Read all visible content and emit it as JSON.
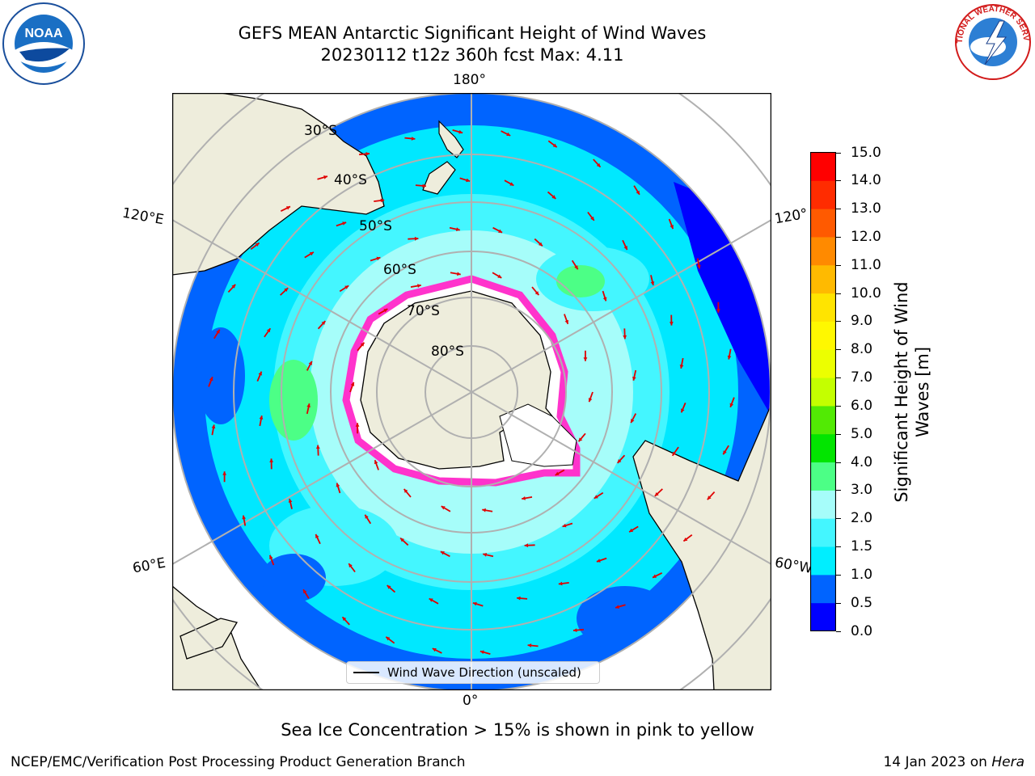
{
  "header": {
    "title_line1": "GEFS MEAN Antarctic Significant Height of Wind Waves",
    "title_line2": "20230112 t12z 360h fcst   Max: 4.11"
  },
  "logos": {
    "left": {
      "icon": "noaa-logo-icon",
      "text": "NOAA"
    },
    "right": {
      "icon": "nws-logo-icon",
      "text": "NATIONAL WEATHER SERVICE"
    }
  },
  "map": {
    "projection": "south-polar-stereographic",
    "longitude_labels": {
      "top": "180°",
      "bottom": "0°",
      "upper_left": "120°E",
      "upper_right": "120°",
      "lower_left": "60°E",
      "lower_right": "60°W"
    },
    "latitude_labels": [
      "30°S",
      "40°S",
      "50°S",
      "60°S",
      "70°S",
      "80°S"
    ],
    "legend": {
      "label": "Wind Wave Direction (unscaled)"
    },
    "colors": {
      "land": "#eeeddc",
      "land_edge": "#000000",
      "grid": "#b0b0b0",
      "arrows": "#e00000",
      "sea_ice": "#ff33cc"
    }
  },
  "colorbar": {
    "label": "Significant Height of Wind Waves [m]",
    "label_line1": "Significant Height of Wind",
    "label_line2": "Waves [m]",
    "ticks": [
      "0.0",
      "0.5",
      "1.0",
      "1.5",
      "2.0",
      "3.0",
      "4.0",
      "5.0",
      "6.0",
      "7.0",
      "8.0",
      "9.0",
      "10.0",
      "11.0",
      "12.0",
      "13.0",
      "14.0",
      "15.0"
    ],
    "colors": [
      "#0000ff",
      "#0064ff",
      "#00eeff",
      "#44f6ff",
      "#a6fdfa",
      "#4cff86",
      "#02e500",
      "#52ea04",
      "#c4ff00",
      "#ecff00",
      "#fff800",
      "#ffe400",
      "#ffba00",
      "#ff8a00",
      "#ff5a00",
      "#ff2c00",
      "#ff0000"
    ]
  },
  "footer": {
    "note": "Sea Ice Concentration > 15% is shown in pink to yellow",
    "left": "NCEP/EMC/Verification Post Processing Product Generation Branch",
    "right_date": "14 Jan 2023 on ",
    "right_machine": "Hera"
  }
}
